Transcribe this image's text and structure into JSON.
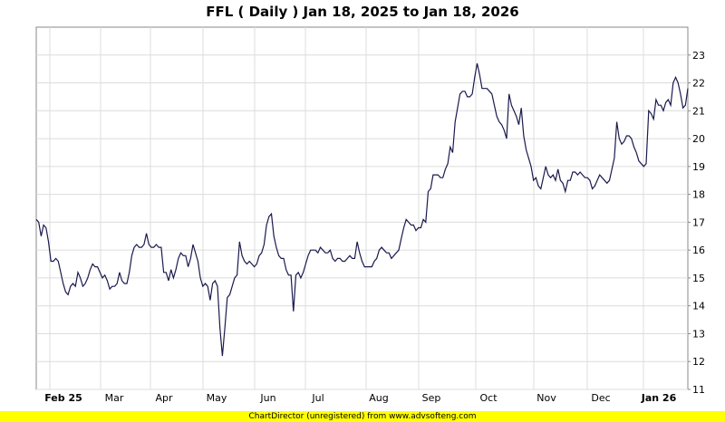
{
  "footer_text": "ChartDirector (unregistered) from www.advsofteng.com",
  "chart_data": {
    "type": "line",
    "title": "FFL ( Daily ) Jan 18, 2025 to Jan 18, 2026",
    "xlabel": "",
    "ylabel": "",
    "ylim": [
      11,
      24
    ],
    "y_ticks": [
      11,
      12,
      13,
      14,
      15,
      16,
      17,
      18,
      19,
      20,
      21,
      22,
      23
    ],
    "x_ticks": [
      "Feb 25",
      "Mar",
      "Apr",
      "May",
      "Jun",
      "Jul",
      "Aug",
      "Sep",
      "Oct",
      "Nov",
      "Dec",
      "Jan 26"
    ],
    "grid": true,
    "line_color": "#1a1a4d",
    "series": [
      {
        "values": [
          17.1,
          17.0,
          16.5,
          16.9,
          16.8,
          16.3,
          15.6,
          15.6,
          15.7,
          15.6,
          15.2,
          14.8,
          14.5,
          14.4,
          14.7,
          14.8,
          14.7,
          15.2,
          15.0,
          14.7,
          14.8,
          15.0,
          15.3,
          15.5,
          15.4,
          15.4,
          15.2,
          15.0,
          15.1,
          14.9,
          14.6,
          14.7,
          14.7,
          14.8,
          15.2,
          14.9,
          14.8,
          14.8,
          15.2,
          15.8,
          16.1,
          16.2,
          16.1,
          16.1,
          16.2,
          16.6,
          16.2,
          16.1,
          16.1,
          16.2,
          16.1,
          16.1,
          15.2,
          15.2,
          14.9,
          15.3,
          15.0,
          15.3,
          15.7,
          15.9,
          15.8,
          15.8,
          15.4,
          15.7,
          16.2,
          15.9,
          15.6,
          15.0,
          14.7,
          14.8,
          14.7,
          14.2,
          14.8,
          14.9,
          14.7,
          13.2,
          12.2,
          13.2,
          14.3,
          14.4,
          14.7,
          15.0,
          15.1,
          16.3,
          15.8,
          15.6,
          15.5,
          15.6,
          15.5,
          15.4,
          15.5,
          15.8,
          15.9,
          16.2,
          16.9,
          17.2,
          17.3,
          16.5,
          16.1,
          15.8,
          15.7,
          15.7,
          15.3,
          15.1,
          15.1,
          13.8,
          15.1,
          15.2,
          15.0,
          15.2,
          15.5,
          15.8,
          16.0,
          16.0,
          16.0,
          15.9,
          16.1,
          16.0,
          15.9,
          15.9,
          16.0,
          15.7,
          15.6,
          15.7,
          15.7,
          15.6,
          15.6,
          15.7,
          15.8,
          15.7,
          15.7,
          16.3,
          15.9,
          15.6,
          15.4,
          15.4,
          15.4,
          15.4,
          15.6,
          15.7,
          16.0,
          16.1,
          16.0,
          15.9,
          15.9,
          15.7,
          15.8,
          15.9,
          16.0,
          16.4,
          16.8,
          17.1,
          17.0,
          16.9,
          16.9,
          16.7,
          16.8,
          16.8,
          17.1,
          17.0,
          18.1,
          18.2,
          18.7,
          18.7,
          18.7,
          18.6,
          18.6,
          18.9,
          19.1,
          19.7,
          19.5,
          20.6,
          21.1,
          21.6,
          21.7,
          21.7,
          21.5,
          21.5,
          21.6,
          22.2,
          22.7,
          22.3,
          21.8,
          21.8,
          21.8,
          21.7,
          21.6,
          21.2,
          20.8,
          20.6,
          20.5,
          20.3,
          20.0,
          21.6,
          21.2,
          21.0,
          20.8,
          20.5,
          21.1,
          20.1,
          19.6,
          19.3,
          19.0,
          18.5,
          18.6,
          18.3,
          18.2,
          18.6,
          19.0,
          18.7,
          18.6,
          18.7,
          18.5,
          18.9,
          18.5,
          18.4,
          18.1,
          18.5,
          18.5,
          18.8,
          18.8,
          18.7,
          18.8,
          18.7,
          18.6,
          18.6,
          18.5,
          18.2,
          18.3,
          18.5,
          18.7,
          18.6,
          18.5,
          18.4,
          18.5,
          18.9,
          19.3,
          20.6,
          20.0,
          19.8,
          19.9,
          20.1,
          20.1,
          20.0,
          19.7,
          19.5,
          19.2,
          19.1,
          19.0,
          19.1,
          21.0,
          20.9,
          20.7,
          21.4,
          21.2,
          21.2,
          21.0,
          21.3,
          21.4,
          21.2,
          22.0,
          22.2,
          22.0,
          21.6,
          21.1,
          21.2,
          21.8
        ]
      }
    ]
  }
}
